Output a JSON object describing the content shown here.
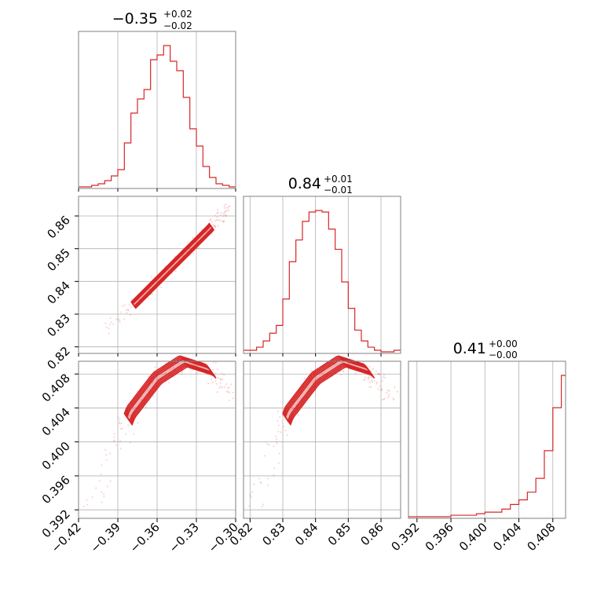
{
  "figure": {
    "accent_color": "#d62728",
    "grid_color": "#b0b0b0",
    "frame_color": "#808080"
  },
  "chart_data": [
    {
      "id": "hist0",
      "type": "histogram",
      "title": "",
      "title_main": "−0.35",
      "title_sup": "+0.02",
      "title_sub": "−0.02",
      "xlim": [
        -0.42,
        -0.3
      ],
      "xticks": [
        -0.42,
        -0.39,
        -0.36,
        -0.33,
        -0.3
      ],
      "bins": [
        -0.42,
        -0.415,
        -0.41,
        -0.405,
        -0.4,
        -0.395,
        -0.39,
        -0.385,
        -0.38,
        -0.375,
        -0.37,
        -0.365,
        -0.36,
        -0.355,
        -0.35,
        -0.345,
        -0.34,
        -0.335,
        -0.33,
        -0.325,
        -0.32,
        -0.315,
        -0.31,
        -0.305,
        -0.3
      ],
      "counts": [
        0,
        0,
        1,
        2,
        4,
        7,
        11,
        28,
        47,
        56,
        62,
        81,
        84,
        90,
        80,
        74,
        57,
        37,
        26,
        13,
        6,
        2,
        1,
        0
      ],
      "grid": true
    },
    {
      "id": "hist1",
      "type": "histogram",
      "title": "",
      "title_main": "0.84",
      "title_sup": "+0.01",
      "title_sub": "−0.01",
      "xlim": [
        0.818,
        0.866
      ],
      "bins": [
        0.818,
        0.82,
        0.822,
        0.824,
        0.826,
        0.828,
        0.83,
        0.832,
        0.834,
        0.836,
        0.838,
        0.84,
        0.842,
        0.844,
        0.846,
        0.848,
        0.85,
        0.852,
        0.854,
        0.856,
        0.858,
        0.86,
        0.862,
        0.864,
        0.866
      ],
      "counts": [
        1,
        1,
        3,
        7,
        12,
        17,
        34,
        58,
        72,
        84,
        90,
        91,
        90,
        79,
        66,
        45,
        28,
        14,
        7,
        3,
        1,
        0,
        0,
        1
      ],
      "grid": true
    },
    {
      "id": "hist2",
      "type": "histogram",
      "title": "",
      "title_main": "0.41",
      "title_sup": "+0.00",
      "title_sub": "−0.00",
      "xlim": [
        0.391,
        0.4095
      ],
      "xticks": [
        0.392,
        0.396,
        0.4,
        0.404,
        0.408
      ],
      "bins": [
        0.391,
        0.392,
        0.393,
        0.394,
        0.395,
        0.396,
        0.397,
        0.398,
        0.399,
        0.4,
        0.401,
        0.402,
        0.403,
        0.404,
        0.405,
        0.406,
        0.407,
        0.408,
        0.409,
        0.4095
      ],
      "counts": [
        0,
        0,
        0,
        0,
        0,
        1,
        1,
        1,
        2,
        3,
        3,
        5,
        8,
        11,
        16,
        25,
        43,
        71,
        92
      ],
      "grid": true
    },
    {
      "id": "scatter10",
      "type": "scatter",
      "xlim": [
        -0.42,
        -0.3
      ],
      "ylim": [
        0.818,
        0.866
      ],
      "yticks": [
        0.82,
        0.83,
        0.84,
        0.85,
        0.86
      ],
      "trend": [
        [
          -0.4,
          0.825
        ],
        [
          -0.38,
          0.832
        ],
        [
          -0.36,
          0.84
        ],
        [
          -0.34,
          0.848
        ],
        [
          -0.32,
          0.856
        ],
        [
          -0.305,
          0.863
        ]
      ],
      "grid": true
    },
    {
      "id": "scatter20",
      "type": "scatter",
      "xlim": [
        -0.42,
        -0.3
      ],
      "ylim": [
        0.391,
        0.4095
      ],
      "yticks": [
        0.392,
        0.396,
        0.4,
        0.404,
        0.408
      ],
      "trend": [
        [
          -0.412,
          0.392
        ],
        [
          -0.39,
          0.3995
        ],
        [
          -0.38,
          0.4035
        ],
        [
          -0.36,
          0.4075
        ],
        [
          -0.34,
          0.4095
        ],
        [
          -0.32,
          0.4085
        ],
        [
          -0.3,
          0.405
        ]
      ],
      "grid": true
    },
    {
      "id": "scatter21",
      "type": "scatter",
      "xlim": [
        0.818,
        0.866
      ],
      "ylim": [
        0.391,
        0.4095
      ],
      "xticks": [
        0.82,
        0.83,
        0.84,
        0.85,
        0.86
      ],
      "x_tick_labels": [
        "0.82",
        "0.83",
        "0.84",
        "0.85",
        "0.86"
      ],
      "trend": [
        [
          0.82,
          0.392
        ],
        [
          0.828,
          0.3995
        ],
        [
          0.832,
          0.4035
        ],
        [
          0.84,
          0.4075
        ],
        [
          0.848,
          0.4095
        ],
        [
          0.856,
          0.4085
        ],
        [
          0.864,
          0.405
        ]
      ],
      "grid": true
    }
  ],
  "tick_labels": {
    "x0": [
      "−0.42",
      "−0.39",
      "−0.36",
      "−0.33",
      "−0.30"
    ],
    "x1": [
      "0.82",
      "0.83",
      "0.84",
      "0.85",
      "0.86"
    ],
    "x2": [
      "0.392",
      "0.396",
      "0.400",
      "0.404",
      "0.408"
    ],
    "y1": [
      "0.82",
      "0.83",
      "0.84",
      "0.85",
      "0.86"
    ],
    "y2": [
      "0.392",
      "0.396",
      "0.400",
      "0.404",
      "0.408"
    ]
  }
}
